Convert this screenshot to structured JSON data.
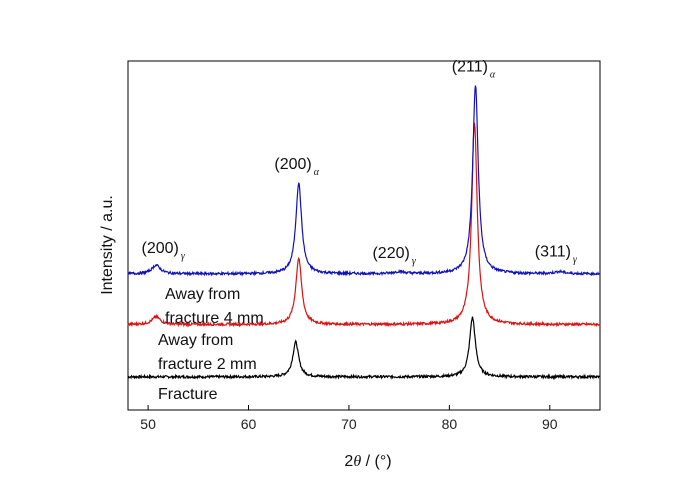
{
  "chart_data": {
    "type": "line",
    "xlabel_prefix": "2",
    "xlabel_theta": "θ",
    "xlabel_suffix": " / (°)",
    "ylabel": "Intensity / a.u.",
    "xlim": [
      48,
      95
    ],
    "xticks": [
      50,
      60,
      70,
      80,
      90
    ],
    "ylim": [
      0,
      100
    ],
    "grid": false,
    "series": [
      {
        "name": "Fracture",
        "label_lines": [
          "Fracture"
        ],
        "color": "#000000",
        "baseline": 9.5,
        "peaks": [
          {
            "x": 64.7,
            "height": 10,
            "width": 0.35
          },
          {
            "x": 82.3,
            "height": 17,
            "width": 0.35
          }
        ]
      },
      {
        "name": "Away from fracture 2 mm",
        "label_lines": [
          "Away from",
          "fracture 2 mm"
        ],
        "color": "#dd1111",
        "baseline": 24.5,
        "peaks": [
          {
            "x": 50.8,
            "height": 2.2,
            "width": 0.5
          },
          {
            "x": 65.0,
            "height": 19,
            "width": 0.35
          },
          {
            "x": 82.5,
            "height": 58,
            "width": 0.33
          }
        ]
      },
      {
        "name": "Away from fracture 4 mm",
        "label_lines": [
          "Away from",
          "fracture 4 mm"
        ],
        "color": "#1111bb",
        "baseline": 39,
        "peaks": [
          {
            "x": 50.8,
            "height": 2.5,
            "width": 0.5
          },
          {
            "x": 65.0,
            "height": 26,
            "width": 0.35
          },
          {
            "x": 75.0,
            "height": 0.6,
            "width": 0.6
          },
          {
            "x": 82.6,
            "height": 54,
            "width": 0.33
          },
          {
            "x": 91.0,
            "height": 0.6,
            "width": 0.6
          }
        ]
      }
    ],
    "annotations": [
      {
        "text": "(200)",
        "sub": "γ",
        "x": 51.5,
        "y": 45
      },
      {
        "text": "(200)",
        "sub": "α",
        "x": 64.8,
        "y": 69
      },
      {
        "text": "(220)",
        "sub": "γ",
        "x": 74.5,
        "y": 43.5
      },
      {
        "text": "(211)",
        "sub": "α",
        "x": 82.4,
        "y": 97
      },
      {
        "text": "(311)",
        "sub": "γ",
        "x": 90.6,
        "y": 44
      }
    ]
  }
}
